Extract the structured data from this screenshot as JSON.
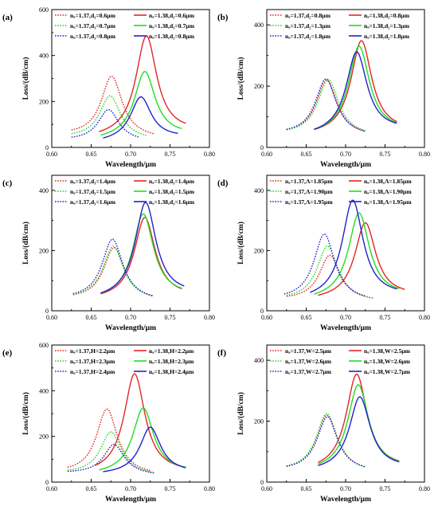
{
  "chart_data": [
    {
      "label": "(a)",
      "type": "line",
      "xlabel": "Wavelength/μm",
      "ylabel": "Loss/(dB/cm)",
      "xlim": [
        0.6,
        0.8
      ],
      "ylim": [
        0,
        600
      ],
      "xticks": [
        "0.60",
        "0.65",
        "0.70",
        "0.75",
        "0.80"
      ],
      "yticks": [
        "0",
        "200",
        "400",
        "600"
      ],
      "legend": "top",
      "series": [
        {
          "name": "nₐ=1.37,d₁=0.6μm",
          "color": "#e32626",
          "dashed": true,
          "peak_x": 0.676,
          "peak_y": 310,
          "x_range": [
            0.625,
            0.73
          ],
          "y_end": [
            52,
            38
          ]
        },
        {
          "name": "nₐ=1.38,d₁=0.6μm",
          "color": "#e32626",
          "dashed": false,
          "peak_x": 0.72,
          "peak_y": 485,
          "x_range": [
            0.66,
            0.77
          ],
          "y_end": [
            40,
            65
          ]
        },
        {
          "name": "nₐ=1.37,d₁=0.7μm",
          "color": "#22dd22",
          "dashed": true,
          "peak_x": 0.674,
          "peak_y": 225,
          "x_range": [
            0.625,
            0.72
          ],
          "y_end": [
            42,
            32
          ]
        },
        {
          "name": "nₐ=1.38,d₁=0.7μm",
          "color": "#22dd22",
          "dashed": false,
          "peak_x": 0.718,
          "peak_y": 330,
          "x_range": [
            0.662,
            0.765
          ],
          "y_end": [
            32,
            52
          ]
        },
        {
          "name": "nₐ=1.37,d₁=0.8μm",
          "color": "#2222cc",
          "dashed": true,
          "peak_x": 0.672,
          "peak_y": 165,
          "x_range": [
            0.625,
            0.71
          ],
          "y_end": [
            30,
            25
          ]
        },
        {
          "name": "nₐ=1.38,d₁=0.8μm",
          "color": "#2222cc",
          "dashed": false,
          "peak_x": 0.713,
          "peak_y": 220,
          "x_range": [
            0.665,
            0.76
          ],
          "y_end": [
            22,
            42
          ]
        }
      ]
    },
    {
      "label": "(b)",
      "type": "line",
      "xlabel": "Wavelength/μm",
      "ylabel": "Loss/(dB/cm)",
      "xlim": [
        0.6,
        0.8
      ],
      "ylim": [
        0,
        450
      ],
      "xticks": [
        "0.60",
        "0.65",
        "0.70",
        "0.75",
        "0.80"
      ],
      "yticks": [
        "0",
        "200",
        "400"
      ],
      "legend": "top",
      "series": [
        {
          "name": "nₐ=1.37,d₂=0.8μm",
          "color": "#e32626",
          "dashed": true,
          "peak_x": 0.676,
          "peak_y": 220,
          "x_range": [
            0.625,
            0.725
          ],
          "y_end": [
            42,
            35
          ]
        },
        {
          "name": "nₐ=1.38,d₂=0.8μm",
          "color": "#e32626",
          "dashed": false,
          "peak_x": 0.72,
          "peak_y": 348,
          "x_range": [
            0.66,
            0.765
          ],
          "y_end": [
            38,
            50
          ]
        },
        {
          "name": "nₐ=1.37,d₂=1.3μm",
          "color": "#22dd22",
          "dashed": true,
          "peak_x": 0.678,
          "peak_y": 222,
          "x_range": [
            0.625,
            0.725
          ],
          "y_end": [
            42,
            36
          ]
        },
        {
          "name": "nₐ=1.38,d₂=1.3μm",
          "color": "#22dd22",
          "dashed": false,
          "peak_x": 0.717,
          "peak_y": 330,
          "x_range": [
            0.66,
            0.765
          ],
          "y_end": [
            38,
            52
          ]
        },
        {
          "name": "nₐ=1.37,d₂=1.8μm",
          "color": "#2222cc",
          "dashed": true,
          "peak_x": 0.675,
          "peak_y": 224,
          "x_range": [
            0.625,
            0.725
          ],
          "y_end": [
            42,
            35
          ]
        },
        {
          "name": "nₐ=1.38,d₂=1.8μm",
          "color": "#2222cc",
          "dashed": false,
          "peak_x": 0.714,
          "peak_y": 312,
          "x_range": [
            0.66,
            0.765
          ],
          "y_end": [
            38,
            55
          ]
        }
      ]
    },
    {
      "label": "(c)",
      "type": "line",
      "xlabel": "Wavelength/μm",
      "ylabel": "Loss/(dB/cm)",
      "xlim": [
        0.6,
        0.8
      ],
      "ylim": [
        0,
        450
      ],
      "xticks": [
        "0.60",
        "0.65",
        "0.70",
        "0.75",
        "0.80"
      ],
      "yticks": [
        "0",
        "200",
        "400"
      ],
      "legend": "top",
      "series": [
        {
          "name": "nₐ=1.37,d₃=1.4μm",
          "color": "#e32626",
          "dashed": true,
          "peak_x": 0.679,
          "peak_y": 210,
          "x_range": [
            0.627,
            0.728
          ],
          "y_end": [
            38,
            32
          ]
        },
        {
          "name": "nₐ=1.38,d₃=1.4μm",
          "color": "#e32626",
          "dashed": false,
          "peak_x": 0.718,
          "peak_y": 310,
          "x_range": [
            0.662,
            0.765
          ],
          "y_end": [
            36,
            45
          ]
        },
        {
          "name": "nₐ=1.37,d₃=1.5μm",
          "color": "#22dd22",
          "dashed": true,
          "peak_x": 0.678,
          "peak_y": 215,
          "x_range": [
            0.627,
            0.728
          ],
          "y_end": [
            38,
            33
          ]
        },
        {
          "name": "nₐ=1.38,d₃=1.5μm",
          "color": "#22dd22",
          "dashed": false,
          "peak_x": 0.716,
          "peak_y": 322,
          "x_range": [
            0.662,
            0.765
          ],
          "y_end": [
            36,
            48
          ]
        },
        {
          "name": "nₐ=1.37,d₃=1.6μm",
          "color": "#2222cc",
          "dashed": true,
          "peak_x": 0.677,
          "peak_y": 238,
          "x_range": [
            0.627,
            0.728
          ],
          "y_end": [
            38,
            32
          ]
        },
        {
          "name": "nₐ=1.38,d₃=1.6μm",
          "color": "#2222cc",
          "dashed": false,
          "peak_x": 0.719,
          "peak_y": 360,
          "x_range": [
            0.662,
            0.768
          ],
          "y_end": [
            36,
            52
          ]
        }
      ]
    },
    {
      "label": "(d)",
      "type": "line",
      "xlabel": "Wavelength/μm",
      "ylabel": "Loss/(dB/cm)",
      "xlim": [
        0.6,
        0.8
      ],
      "ylim": [
        0,
        450
      ],
      "xticks": [
        "0.60",
        "0.65",
        "0.70",
        "0.75",
        "0.80"
      ],
      "yticks": [
        "0",
        "200",
        "400"
      ],
      "legend": "top",
      "series": [
        {
          "name": "nₐ=1.37,Λ=1.85μm",
          "color": "#e32626",
          "dashed": true,
          "peak_x": 0.68,
          "peak_y": 185,
          "x_range": [
            0.625,
            0.735
          ],
          "y_end": [
            36,
            30
          ]
        },
        {
          "name": "nₐ=1.38,Λ=1.85μm",
          "color": "#e32626",
          "dashed": false,
          "peak_x": 0.725,
          "peak_y": 292,
          "x_range": [
            0.665,
            0.775
          ],
          "y_end": [
            35,
            48
          ]
        },
        {
          "name": "nₐ=1.37,Λ=1.90μm",
          "color": "#22dd22",
          "dashed": true,
          "peak_x": 0.677,
          "peak_y": 215,
          "x_range": [
            0.625,
            0.73
          ],
          "y_end": [
            36,
            30
          ]
        },
        {
          "name": "nₐ=1.38,Λ=1.90μm",
          "color": "#22dd22",
          "dashed": false,
          "peak_x": 0.717,
          "peak_y": 325,
          "x_range": [
            0.66,
            0.768
          ],
          "y_end": [
            35,
            48
          ]
        },
        {
          "name": "nₐ=1.37,Λ=1.95μm",
          "color": "#2222cc",
          "dashed": true,
          "peak_x": 0.673,
          "peak_y": 255,
          "x_range": [
            0.622,
            0.725
          ],
          "y_end": [
            36,
            30
          ]
        },
        {
          "name": "nₐ=1.38,Λ=1.95μm",
          "color": "#2222cc",
          "dashed": false,
          "peak_x": 0.709,
          "peak_y": 368,
          "x_range": [
            0.655,
            0.765
          ],
          "y_end": [
            35,
            48
          ]
        }
      ]
    },
    {
      "label": "(e)",
      "type": "line",
      "xlabel": "Wavelength/μm",
      "ylabel": "Loss/(dB/cm)",
      "xlim": [
        0.6,
        0.8
      ],
      "ylim": [
        0,
        600
      ],
      "xticks": [
        "0.60",
        "0.65",
        "0.70",
        "0.75",
        "0.80"
      ],
      "yticks": [
        "0",
        "200",
        "400",
        "600"
      ],
      "legend": "top",
      "series": [
        {
          "name": "nₐ=1.37,H=2.2μm",
          "color": "#e32626",
          "dashed": true,
          "peak_x": 0.67,
          "peak_y": 320,
          "x_range": [
            0.62,
            0.725
          ],
          "y_end": [
            38,
            28
          ]
        },
        {
          "name": "nₐ=1.38,H=2.2μm",
          "color": "#e32626",
          "dashed": false,
          "peak_x": 0.705,
          "peak_y": 475,
          "x_range": [
            0.655,
            0.77
          ],
          "y_end": [
            32,
            40
          ]
        },
        {
          "name": "nₐ=1.37,H=2.3μm",
          "color": "#22dd22",
          "dashed": true,
          "peak_x": 0.675,
          "peak_y": 220,
          "x_range": [
            0.62,
            0.728
          ],
          "y_end": [
            38,
            28
          ]
        },
        {
          "name": "nₐ=1.38,H=2.3μm",
          "color": "#22dd22",
          "dashed": false,
          "peak_x": 0.716,
          "peak_y": 325,
          "x_range": [
            0.66,
            0.77
          ],
          "y_end": [
            32,
            42
          ]
        },
        {
          "name": "nₐ=1.37,H=2.4μm",
          "color": "#2222cc",
          "dashed": true,
          "peak_x": 0.679,
          "peak_y": 165,
          "x_range": [
            0.62,
            0.73
          ],
          "y_end": [
            38,
            28
          ]
        },
        {
          "name": "nₐ=1.38,H=2.4μm",
          "color": "#2222cc",
          "dashed": false,
          "peak_x": 0.725,
          "peak_y": 240,
          "x_range": [
            0.665,
            0.77
          ],
          "y_end": [
            32,
            40
          ]
        }
      ]
    },
    {
      "label": "(f)",
      "type": "line",
      "xlabel": "Wavelength/μm",
      "ylabel": "Loss/(dB/cm)",
      "xlim": [
        0.6,
        0.8
      ],
      "ylim": [
        0,
        450
      ],
      "xticks": [
        "0.60",
        "0.65",
        "0.70",
        "0.75",
        "0.80"
      ],
      "yticks": [
        "0",
        "200",
        "400"
      ],
      "legend": "top",
      "series": [
        {
          "name": "nₐ=1.37,W=2.5μm",
          "color": "#e32626",
          "dashed": true,
          "peak_x": 0.676,
          "peak_y": 220,
          "x_range": [
            0.625,
            0.725
          ],
          "y_end": [
            36,
            32
          ]
        },
        {
          "name": "nₐ=1.38,W=2.5μm",
          "color": "#e32626",
          "dashed": false,
          "peak_x": 0.714,
          "peak_y": 355,
          "x_range": [
            0.665,
            0.768
          ],
          "y_end": [
            34,
            44
          ]
        },
        {
          "name": "nₐ=1.37,W=2.6μm",
          "color": "#22dd22",
          "dashed": true,
          "peak_x": 0.676,
          "peak_y": 225,
          "x_range": [
            0.625,
            0.725
          ],
          "y_end": [
            36,
            32
          ]
        },
        {
          "name": "nₐ=1.38,W=2.6μm",
          "color": "#22dd22",
          "dashed": false,
          "peak_x": 0.716,
          "peak_y": 320,
          "x_range": [
            0.665,
            0.768
          ],
          "y_end": [
            34,
            44
          ]
        },
        {
          "name": "nₐ=1.37,W=2.7μm",
          "color": "#2222cc",
          "dashed": true,
          "peak_x": 0.677,
          "peak_y": 215,
          "x_range": [
            0.625,
            0.725
          ],
          "y_end": [
            36,
            32
          ]
        },
        {
          "name": "nₐ=1.38,W=2.7μm",
          "color": "#2222cc",
          "dashed": false,
          "peak_x": 0.718,
          "peak_y": 280,
          "x_range": [
            0.665,
            0.768
          ],
          "y_end": [
            34,
            44
          ]
        }
      ]
    }
  ]
}
